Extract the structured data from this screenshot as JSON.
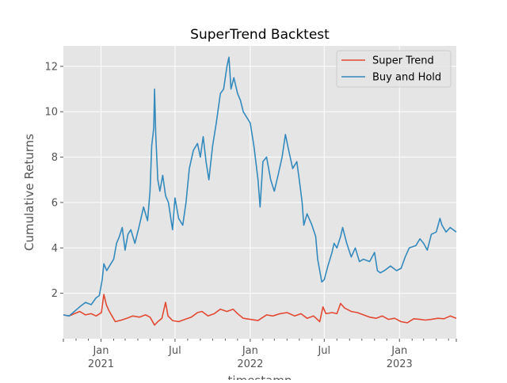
{
  "chart_data": {
    "type": "line",
    "title": "SuperTrend Backtest",
    "xlabel": "timestamp",
    "ylabel": "Cumulative Returns",
    "x_start": "2020-10-01",
    "x_end": "2023-05-20",
    "ylim": [
      0.0,
      12.9
    ],
    "grid": true,
    "legend_position": "top-right",
    "y_ticks": [
      {
        "value": 2,
        "label": "2"
      },
      {
        "value": 4,
        "label": "4"
      },
      {
        "value": 6,
        "label": "6"
      },
      {
        "value": 8,
        "label": "8"
      },
      {
        "value": 10,
        "label": "10"
      },
      {
        "value": 12,
        "label": "12"
      }
    ],
    "x_major_ticks": [
      {
        "date": "2021-01-01",
        "label": "Jan",
        "year": "2021"
      },
      {
        "date": "2021-07-01",
        "label": "Jul",
        "year": ""
      },
      {
        "date": "2022-01-01",
        "label": "Jan",
        "year": "2022"
      },
      {
        "date": "2022-07-01",
        "label": "Jul",
        "year": ""
      },
      {
        "date": "2023-01-01",
        "label": "Jan",
        "year": "2023"
      }
    ],
    "x_minor_ticks": [
      "2020-10-01",
      "2020-11-01",
      "2020-12-01",
      "2021-02-01",
      "2021-03-01",
      "2021-04-01",
      "2021-05-01",
      "2021-06-01",
      "2021-08-01",
      "2021-09-01",
      "2021-10-01",
      "2021-11-01",
      "2021-12-01",
      "2022-02-01",
      "2022-03-01",
      "2022-04-01",
      "2022-05-01",
      "2022-06-01",
      "2022-08-01",
      "2022-09-01",
      "2022-10-01",
      "2022-11-01",
      "2022-12-01",
      "2023-02-01",
      "2023-03-01",
      "2023-04-01",
      "2023-05-01"
    ],
    "series": [
      {
        "name": "Super Trend",
        "color": "#e24a33",
        "points": [
          [
            "2020-10-01",
            1.05
          ],
          [
            "2020-10-15",
            1.0
          ],
          [
            "2020-10-28",
            1.1
          ],
          [
            "2020-11-10",
            1.2
          ],
          [
            "2020-11-24",
            1.05
          ],
          [
            "2020-12-08",
            1.1
          ],
          [
            "2020-12-20",
            1.0
          ],
          [
            "2021-01-02",
            1.15
          ],
          [
            "2021-01-08",
            1.95
          ],
          [
            "2021-01-14",
            1.5
          ],
          [
            "2021-01-20",
            1.25
          ],
          [
            "2021-01-28",
            1.0
          ],
          [
            "2021-02-05",
            0.75
          ],
          [
            "2021-02-20",
            0.82
          ],
          [
            "2021-03-05",
            0.9
          ],
          [
            "2021-03-20",
            1.0
          ],
          [
            "2021-04-05",
            0.95
          ],
          [
            "2021-04-20",
            1.05
          ],
          [
            "2021-05-01",
            0.95
          ],
          [
            "2021-05-12",
            0.6
          ],
          [
            "2021-05-20",
            0.75
          ],
          [
            "2021-05-30",
            0.9
          ],
          [
            "2021-06-08",
            1.6
          ],
          [
            "2021-06-14",
            1.0
          ],
          [
            "2021-06-25",
            0.8
          ],
          [
            "2021-07-10",
            0.75
          ],
          [
            "2021-07-25",
            0.85
          ],
          [
            "2021-08-10",
            0.95
          ],
          [
            "2021-08-25",
            1.15
          ],
          [
            "2021-09-05",
            1.2
          ],
          [
            "2021-09-20",
            1.0
          ],
          [
            "2021-10-05",
            1.1
          ],
          [
            "2021-10-20",
            1.3
          ],
          [
            "2021-11-05",
            1.2
          ],
          [
            "2021-11-20",
            1.3
          ],
          [
            "2021-12-01",
            1.1
          ],
          [
            "2021-12-15",
            0.9
          ],
          [
            "2022-01-01",
            0.85
          ],
          [
            "2022-01-20",
            0.8
          ],
          [
            "2022-02-10",
            1.05
          ],
          [
            "2022-02-25",
            1.0
          ],
          [
            "2022-03-15",
            1.1
          ],
          [
            "2022-04-01",
            1.15
          ],
          [
            "2022-04-20",
            1.0
          ],
          [
            "2022-05-05",
            1.1
          ],
          [
            "2022-05-20",
            0.9
          ],
          [
            "2022-06-05",
            1.0
          ],
          [
            "2022-06-20",
            0.75
          ],
          [
            "2022-06-28",
            1.4
          ],
          [
            "2022-07-05",
            1.1
          ],
          [
            "2022-07-20",
            1.15
          ],
          [
            "2022-08-01",
            1.1
          ],
          [
            "2022-08-10",
            1.55
          ],
          [
            "2022-08-20",
            1.35
          ],
          [
            "2022-09-05",
            1.2
          ],
          [
            "2022-09-20",
            1.15
          ],
          [
            "2022-10-05",
            1.05
          ],
          [
            "2022-10-20",
            0.95
          ],
          [
            "2022-11-05",
            0.9
          ],
          [
            "2022-11-20",
            1.0
          ],
          [
            "2022-12-05",
            0.85
          ],
          [
            "2022-12-20",
            0.9
          ],
          [
            "2023-01-05",
            0.75
          ],
          [
            "2023-01-20",
            0.7
          ],
          [
            "2023-02-05",
            0.88
          ],
          [
            "2023-02-20",
            0.85
          ],
          [
            "2023-03-05",
            0.82
          ],
          [
            "2023-03-20",
            0.85
          ],
          [
            "2023-04-05",
            0.9
          ],
          [
            "2023-04-20",
            0.88
          ],
          [
            "2023-05-05",
            1.0
          ],
          [
            "2023-05-20",
            0.9
          ]
        ]
      },
      {
        "name": "Buy and Hold",
        "color": "#348abd",
        "points": [
          [
            "2020-10-01",
            1.05
          ],
          [
            "2020-10-15",
            1.0
          ],
          [
            "2020-10-28",
            1.2
          ],
          [
            "2020-11-10",
            1.4
          ],
          [
            "2020-11-24",
            1.6
          ],
          [
            "2020-12-08",
            1.5
          ],
          [
            "2020-12-20",
            1.8
          ],
          [
            "2020-12-28",
            1.9
          ],
          [
            "2021-01-04",
            2.6
          ],
          [
            "2021-01-08",
            3.3
          ],
          [
            "2021-01-15",
            3.0
          ],
          [
            "2021-01-25",
            3.3
          ],
          [
            "2021-02-01",
            3.5
          ],
          [
            "2021-02-08",
            4.2
          ],
          [
            "2021-02-15",
            4.5
          ],
          [
            "2021-02-22",
            4.9
          ],
          [
            "2021-03-01",
            3.9
          ],
          [
            "2021-03-08",
            4.6
          ],
          [
            "2021-03-15",
            4.8
          ],
          [
            "2021-03-25",
            4.2
          ],
          [
            "2021-04-05",
            5.0
          ],
          [
            "2021-04-15",
            5.8
          ],
          [
            "2021-04-25",
            5.2
          ],
          [
            "2021-05-01",
            6.5
          ],
          [
            "2021-05-05",
            8.5
          ],
          [
            "2021-05-10",
            9.3
          ],
          [
            "2021-05-12",
            11.0
          ],
          [
            "2021-05-15",
            9.0
          ],
          [
            "2021-05-20",
            7.0
          ],
          [
            "2021-05-25",
            6.5
          ],
          [
            "2021-06-01",
            7.2
          ],
          [
            "2021-06-08",
            6.3
          ],
          [
            "2021-06-15",
            6.0
          ],
          [
            "2021-06-25",
            4.8
          ],
          [
            "2021-07-01",
            6.2
          ],
          [
            "2021-07-10",
            5.3
          ],
          [
            "2021-07-20",
            5.0
          ],
          [
            "2021-07-28",
            6.0
          ],
          [
            "2021-08-05",
            7.5
          ],
          [
            "2021-08-15",
            8.3
          ],
          [
            "2021-08-25",
            8.6
          ],
          [
            "2021-09-01",
            8.0
          ],
          [
            "2021-09-08",
            8.9
          ],
          [
            "2021-09-15",
            7.8
          ],
          [
            "2021-09-22",
            7.0
          ],
          [
            "2021-10-01",
            8.5
          ],
          [
            "2021-10-10",
            9.5
          ],
          [
            "2021-10-20",
            10.8
          ],
          [
            "2021-10-28",
            11.0
          ],
          [
            "2021-11-05",
            12.0
          ],
          [
            "2021-11-10",
            12.4
          ],
          [
            "2021-11-15",
            11.0
          ],
          [
            "2021-11-22",
            11.5
          ],
          [
            "2021-12-01",
            10.8
          ],
          [
            "2021-12-08",
            10.5
          ],
          [
            "2021-12-15",
            10.0
          ],
          [
            "2022-01-01",
            9.5
          ],
          [
            "2022-01-10",
            8.5
          ],
          [
            "2022-01-20",
            7.0
          ],
          [
            "2022-01-25",
            5.8
          ],
          [
            "2022-02-01",
            7.8
          ],
          [
            "2022-02-10",
            8.0
          ],
          [
            "2022-02-20",
            7.0
          ],
          [
            "2022-03-01",
            6.5
          ],
          [
            "2022-03-10",
            7.2
          ],
          [
            "2022-03-20",
            8.0
          ],
          [
            "2022-03-28",
            9.0
          ],
          [
            "2022-04-05",
            8.3
          ],
          [
            "2022-04-15",
            7.5
          ],
          [
            "2022-04-25",
            7.8
          ],
          [
            "2022-05-01",
            7.0
          ],
          [
            "2022-05-08",
            6.0
          ],
          [
            "2022-05-12",
            5.0
          ],
          [
            "2022-05-20",
            5.5
          ],
          [
            "2022-06-01",
            5.0
          ],
          [
            "2022-06-10",
            4.5
          ],
          [
            "2022-06-15",
            3.5
          ],
          [
            "2022-06-20",
            3.0
          ],
          [
            "2022-06-25",
            2.5
          ],
          [
            "2022-07-01",
            2.6
          ],
          [
            "2022-07-10",
            3.2
          ],
          [
            "2022-07-20",
            3.8
          ],
          [
            "2022-07-25",
            4.2
          ],
          [
            "2022-08-01",
            4.0
          ],
          [
            "2022-08-10",
            4.5
          ],
          [
            "2022-08-15",
            4.9
          ],
          [
            "2022-08-25",
            4.2
          ],
          [
            "2022-09-05",
            3.6
          ],
          [
            "2022-09-15",
            4.0
          ],
          [
            "2022-09-25",
            3.4
          ],
          [
            "2022-10-05",
            3.5
          ],
          [
            "2022-10-20",
            3.4
          ],
          [
            "2022-11-01",
            3.8
          ],
          [
            "2022-11-08",
            3.0
          ],
          [
            "2022-11-15",
            2.9
          ],
          [
            "2022-11-25",
            3.0
          ],
          [
            "2022-12-10",
            3.2
          ],
          [
            "2022-12-25",
            3.0
          ],
          [
            "2023-01-05",
            3.1
          ],
          [
            "2023-01-15",
            3.6
          ],
          [
            "2023-01-25",
            4.0
          ],
          [
            "2023-02-10",
            4.1
          ],
          [
            "2023-02-20",
            4.4
          ],
          [
            "2023-03-01",
            4.2
          ],
          [
            "2023-03-10",
            3.9
          ],
          [
            "2023-03-20",
            4.6
          ],
          [
            "2023-04-01",
            4.7
          ],
          [
            "2023-04-10",
            5.3
          ],
          [
            "2023-04-15",
            5.0
          ],
          [
            "2023-04-25",
            4.7
          ],
          [
            "2023-05-05",
            4.9
          ],
          [
            "2023-05-20",
            4.7
          ]
        ]
      }
    ]
  }
}
